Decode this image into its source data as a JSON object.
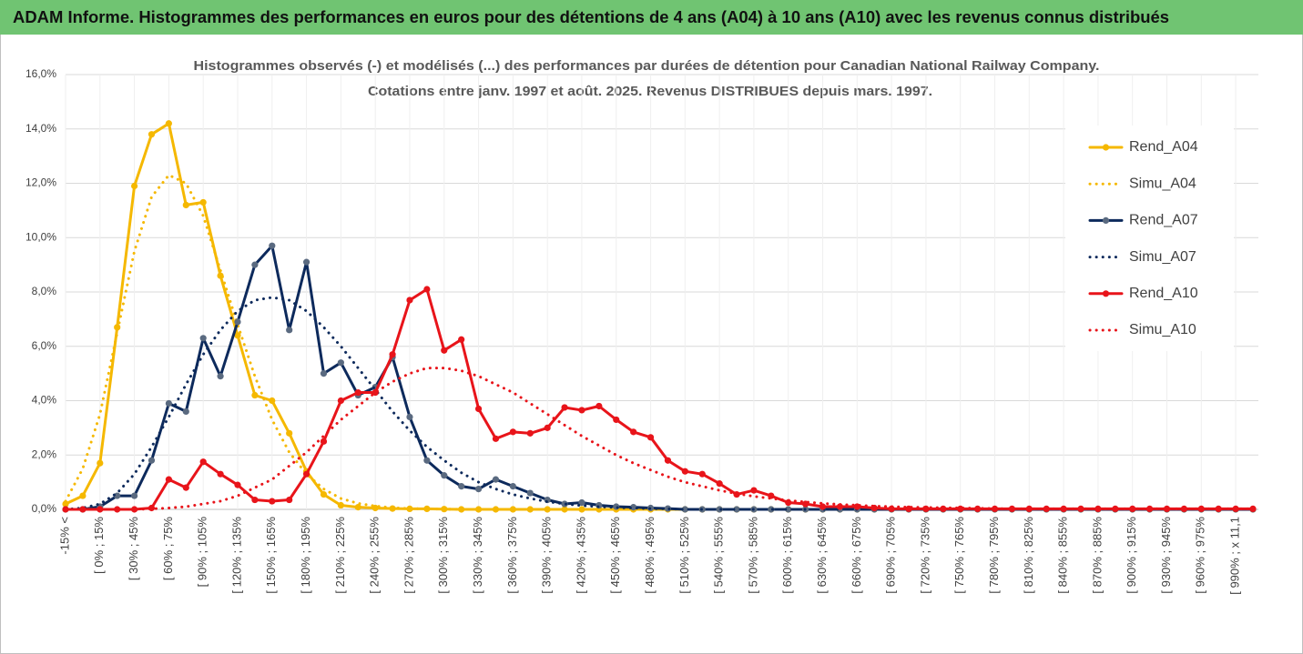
{
  "title": "ADAM Informe. Histogrammes des performances en euros pour des détentions de 4 ans (A04) à 10 ans (A10) avec les revenus connus distribués",
  "chart_data": {
    "type": "line",
    "subtitle": [
      "Histogrammes observés (-) et modélisés (...) des performances par durées de détention pour Canadian National Railway Company.",
      "Cotations entre janv. 1997 et août. 2025. Revenus DISTRIBUES depuis mars. 1997."
    ],
    "categories": [
      "-15% <",
      null,
      "[ 0% ; 15%",
      null,
      "[ 30% ; 45%",
      null,
      "[ 60% ; 75%",
      null,
      "[ 90% ; 105%",
      null,
      "[ 120% ; 135%",
      null,
      "[ 150% ; 165%",
      null,
      "[ 180% ; 195%",
      null,
      "[ 210% ; 225%",
      null,
      "[ 240% ; 255%",
      null,
      "[ 270% ; 285%",
      null,
      "[ 300% ; 315%",
      null,
      "[ 330% ; 345%",
      null,
      "[ 360% ; 375%",
      null,
      "[ 390% ; 405%",
      null,
      "[ 420% ; 435%",
      null,
      "[ 450% ; 465%",
      null,
      "[ 480% ; 495%",
      null,
      "[ 510% ; 525%",
      null,
      "[ 540% ; 555%",
      null,
      "[ 570% ; 585%",
      null,
      "[ 600% ; 615%",
      null,
      "[ 630% ; 645%",
      null,
      "[ 660% ; 675%",
      null,
      "[ 690% ; 705%",
      null,
      "[ 720% ; 735%",
      null,
      "[ 750% ; 765%",
      null,
      "[ 780% ; 795%",
      null,
      "[ 810% ; 825%",
      null,
      "[ 840% ; 855%",
      null,
      "[ 870% ; 885%",
      null,
      "[ 900% ; 915%",
      null,
      "[ 930% ; 945%",
      null,
      "[ 960% ; 975%",
      null,
      "[ 990% ; x 11,1",
      null
    ],
    "series": [
      {
        "name": "Rend_A04",
        "color": "#f5b800",
        "style": "solid",
        "values": [
          0.2,
          0.5,
          1.7,
          6.7,
          11.9,
          13.8,
          14.2,
          11.2,
          11.3,
          8.6,
          6.4,
          4.2,
          4.0,
          2.8,
          1.4,
          0.55,
          0.15,
          0.08,
          0.05,
          0.03,
          0.02,
          0.02,
          0.01,
          0,
          0,
          0,
          0,
          0,
          0,
          0,
          0,
          0,
          0,
          0,
          0,
          0,
          0,
          0,
          0,
          0,
          0,
          0,
          0,
          0,
          0,
          0,
          0,
          0,
          0,
          0,
          0,
          0,
          0,
          0,
          0,
          0,
          0,
          0,
          0,
          0,
          0,
          0,
          0,
          0,
          0,
          0,
          0,
          0,
          0,
          0
        ]
      },
      {
        "name": "Simu_A04",
        "color": "#f5b800",
        "style": "dotted",
        "values": [
          0.3,
          1.5,
          3.5,
          6.5,
          9.5,
          11.5,
          12.3,
          12.0,
          10.8,
          8.8,
          6.8,
          4.9,
          3.3,
          2.1,
          1.3,
          0.75,
          0.4,
          0.22,
          0.12,
          0.06,
          0.03,
          0.02,
          0.01,
          0,
          0,
          0,
          0,
          0,
          0,
          0,
          0,
          0,
          0,
          0,
          0,
          0,
          0,
          0,
          0,
          0,
          0,
          0,
          0,
          0,
          0,
          0,
          0,
          0,
          0,
          0,
          0,
          0,
          0,
          0,
          0,
          0,
          0,
          0,
          0,
          0,
          0,
          0,
          0,
          0,
          0,
          0,
          0,
          0,
          0,
          0
        ]
      },
      {
        "name": "Rend_A07",
        "color": "#0d2a5c",
        "style": "solid",
        "marker": "#5a6a80",
        "values": [
          0,
          0,
          0.1,
          0.5,
          0.5,
          1.8,
          3.9,
          3.6,
          6.3,
          4.9,
          6.9,
          9.0,
          9.7,
          6.6,
          9.1,
          5.0,
          5.4,
          4.2,
          4.5,
          5.6,
          3.4,
          1.8,
          1.25,
          0.85,
          0.75,
          1.1,
          0.85,
          0.6,
          0.35,
          0.2,
          0.25,
          0.15,
          0.1,
          0.08,
          0.05,
          0.03,
          0,
          0,
          0,
          0,
          0,
          0,
          0,
          0,
          0,
          0,
          0,
          0,
          0,
          0,
          0,
          0,
          0,
          0,
          0,
          0,
          0,
          0,
          0,
          0,
          0,
          0,
          0,
          0,
          0,
          0,
          0,
          0,
          0,
          0
        ]
      },
      {
        "name": "Simu_A07",
        "color": "#0d2a5c",
        "style": "dotted",
        "values": [
          0,
          0.05,
          0.2,
          0.6,
          1.3,
          2.3,
          3.4,
          4.6,
          5.7,
          6.6,
          7.3,
          7.7,
          7.8,
          7.7,
          7.3,
          6.7,
          6.0,
          5.2,
          4.4,
          3.6,
          2.9,
          2.3,
          1.8,
          1.35,
          1.0,
          0.75,
          0.55,
          0.4,
          0.28,
          0.2,
          0.14,
          0.1,
          0.07,
          0.05,
          0.03,
          0.02,
          0,
          0,
          0,
          0,
          0,
          0,
          0,
          0,
          0,
          0,
          0,
          0,
          0,
          0,
          0,
          0,
          0,
          0,
          0,
          0,
          0,
          0,
          0,
          0,
          0,
          0,
          0,
          0,
          0,
          0,
          0,
          0,
          0,
          0
        ]
      },
      {
        "name": "Rend_A10",
        "color": "#e8141a",
        "style": "solid",
        "values": [
          0,
          0,
          0,
          0,
          0,
          0.05,
          1.1,
          0.8,
          1.75,
          1.3,
          0.9,
          0.35,
          0.3,
          0.35,
          1.3,
          2.5,
          4.0,
          4.3,
          4.3,
          5.7,
          7.7,
          8.1,
          5.85,
          6.25,
          3.7,
          2.6,
          2.85,
          2.8,
          3.0,
          3.75,
          3.65,
          3.8,
          3.3,
          2.85,
          2.65,
          1.8,
          1.4,
          1.3,
          0.95,
          0.55,
          0.7,
          0.5,
          0.25,
          0.2,
          0.1,
          0.1,
          0.1,
          0.05,
          0.02,
          0.02,
          0.02,
          0.02,
          0.02,
          0.02,
          0.02,
          0.02,
          0.02,
          0.02,
          0.02,
          0.02,
          0.02,
          0.02,
          0.02,
          0.02,
          0.02,
          0.02,
          0.02,
          0.02,
          0.02,
          0.02
        ]
      },
      {
        "name": "Simu_A10",
        "color": "#e8141a",
        "style": "dotted",
        "values": [
          0,
          0,
          0,
          0,
          0,
          0.02,
          0.05,
          0.1,
          0.2,
          0.3,
          0.5,
          0.8,
          1.1,
          1.6,
          2.1,
          2.7,
          3.3,
          3.8,
          4.3,
          4.7,
          5.0,
          5.2,
          5.2,
          5.1,
          4.9,
          4.6,
          4.3,
          3.9,
          3.5,
          3.1,
          2.7,
          2.35,
          2.0,
          1.7,
          1.45,
          1.2,
          1.0,
          0.85,
          0.7,
          0.58,
          0.48,
          0.4,
          0.33,
          0.27,
          0.22,
          0.18,
          0.15,
          0.12,
          0.1,
          0.08,
          0.07,
          0.06,
          0.05,
          0.04,
          0.03,
          0.02,
          0.02,
          0.02,
          0.02,
          0.02,
          0.02,
          0.02,
          0.02,
          0.02,
          0.02,
          0.02,
          0.02,
          0.02,
          0.02,
          0.02
        ]
      }
    ],
    "ylim": [
      0,
      16
    ],
    "yticks": [
      {
        "value": 0,
        "label": "0,0%"
      },
      {
        "value": 2,
        "label": "2,0%"
      },
      {
        "value": 4,
        "label": "4,0%"
      },
      {
        "value": 6,
        "label": "6,0%"
      },
      {
        "value": 8,
        "label": "8,0%"
      },
      {
        "value": 10,
        "label": "10,0%"
      },
      {
        "value": 12,
        "label": "12,0%"
      },
      {
        "value": 14,
        "label": "14,0%"
      },
      {
        "value": 16,
        "label": "16,0%"
      }
    ],
    "grid": true,
    "legend": "right"
  }
}
